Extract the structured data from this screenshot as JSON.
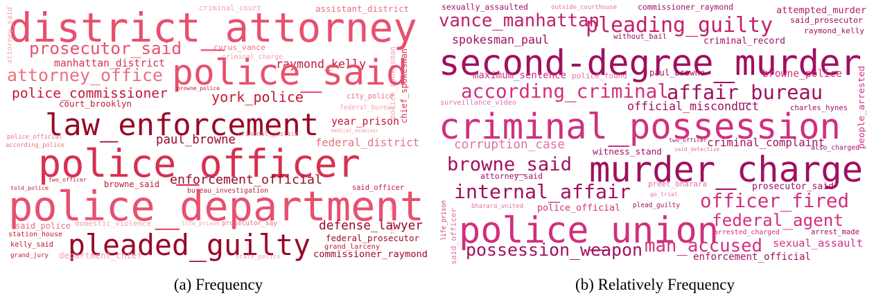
{
  "figures": [
    {
      "caption": "(a) Frequency",
      "words": [
        "district_attorney",
        "criminal_court",
        "assistant_district",
        "attorney_said",
        "prosecutor_said",
        "cyrus_vance",
        "criminal_charge",
        "raymond_kelly",
        "police_spokesman",
        "chief_spokesman",
        "manhattan_district",
        "police_said",
        "attorney_office",
        "browne_police",
        "police_commissioner",
        "york_police",
        "city_police",
        "court_brooklyn",
        "federal_bureau",
        "law_enforcement",
        "year_prison",
        "medical_examiner",
        "criminal_justice",
        "police_official",
        "paul_browne",
        "federal_district",
        "according_police",
        "police_officer",
        "told_judge",
        "two_officer",
        "enforcement_official",
        "told_police",
        "browne_said",
        "bureau_investigation",
        "said_officer",
        "police_department",
        "said_police",
        "domestic_violence",
        "life_prison",
        "prosecutor_say",
        "defense_lawyer",
        "station_house",
        "pleaded_guilty",
        "federal_prosecutor",
        "kelly_said",
        "grand_larceny",
        "grand_jury",
        "department_chief",
        "state_police",
        "commissioner_raymond"
      ]
    },
    {
      "caption": "(b) Relatively Frequency",
      "words": [
        "sexually_assaulted",
        "outside_courthouse",
        "commissioner_raymond",
        "attempted_murder",
        "said_prosecutor",
        "vance_manhattan",
        "pleading_guilty",
        "without_bail",
        "raymond_kelly",
        "spokesman_paul",
        "criminal_record",
        "second-degree_murder",
        "maximum_sentence",
        "police_found",
        "paul_browne",
        "browne_police",
        "people_arrested",
        "according_criminal",
        "affair_bureau",
        "surveillance_video",
        "official_misconduct",
        "charles_hynes",
        "criminal_possession",
        "two_officer",
        "criminal_complaint",
        "corruption_case",
        "said_detective",
        "also_charged",
        "witness_stand",
        "browne_said",
        "murder_charge",
        "attorney_said",
        "preet_bharara",
        "prosecutor_said",
        "internal_affair",
        "go_trial",
        "life_prison",
        "said_officer",
        "bharara_united",
        "police_official",
        "plead_guilty",
        "officer_fired",
        "police_union",
        "federal_agent",
        "arrested_charged",
        "arrest_made",
        "man_accused",
        "sexual_assault",
        "possession_weapon",
        "enforcement_official"
      ]
    }
  ]
}
